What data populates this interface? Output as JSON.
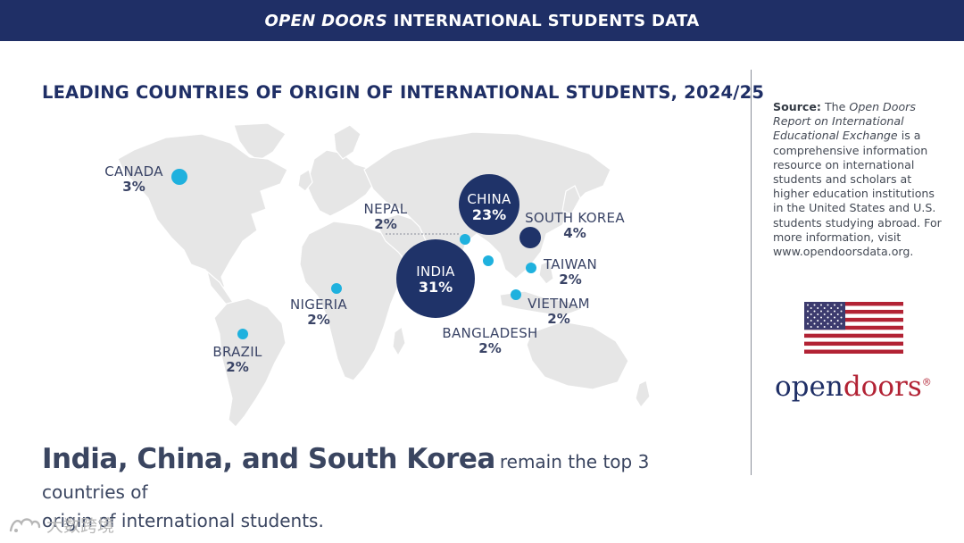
{
  "header": {
    "title_italic": "OPEN DOORS",
    "title_rest": "INTERNATIONAL STUDENTS DATA"
  },
  "map": {
    "title": "LEADING COUNTRIES OF ORIGIN OF INTERNATIONAL STUDENTS, 2024/25",
    "colors": {
      "large": "#1f3369",
      "small": "#1fb1de",
      "land": "#e6e6e6"
    },
    "countries": [
      {
        "name": "INDIA",
        "share": "31%",
        "value": 31
      },
      {
        "name": "CHINA",
        "share": "23%",
        "value": 23
      },
      {
        "name": "SOUTH KOREA",
        "share": "4%",
        "value": 4
      },
      {
        "name": "CANADA",
        "share": "3%",
        "value": 3
      },
      {
        "name": "NEPAL",
        "share": "2%",
        "value": 2
      },
      {
        "name": "TAIWAN",
        "share": "2%",
        "value": 2
      },
      {
        "name": "VIETNAM",
        "share": "2%",
        "value": 2
      },
      {
        "name": "BANGLADESH",
        "share": "2%",
        "value": 2
      },
      {
        "name": "NIGERIA",
        "share": "2%",
        "value": 2
      },
      {
        "name": "BRAZIL",
        "share": "2%",
        "value": 2
      }
    ]
  },
  "sidebar": {
    "source_label": "Source:",
    "source_pre": "The",
    "source_italic": "Open Doors Report on International Educational Exchange",
    "source_post": "is a comprehensive information resource on international students and scholars at higher education institutions in the United States and U.S. students studying abroad. For more information, visit www.opendoorsdata.org.",
    "flag_icon": "us-flag-icon",
    "logo_open": "open",
    "logo_doors": "doors",
    "logo_mark": "®"
  },
  "headline": {
    "bold": "India, China, and South Korea",
    "rest": "remain the top 3 countries of",
    "line2": "origin of international students."
  },
  "watermark": {
    "text": "大数跨境",
    "icon": "brand-logo-icon"
  }
}
